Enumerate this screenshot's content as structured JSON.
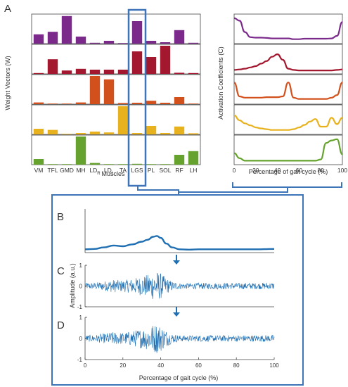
{
  "panel_labels": {
    "A": "A",
    "B": "B",
    "C": "C",
    "D": "D"
  },
  "colors": {
    "synergy": [
      "#7b2a8c",
      "#a3172f",
      "#d2501c",
      "#e8b21f",
      "#66a32e"
    ],
    "highlight": "#3e74b8",
    "signal": "#1f6fb2",
    "axis": "#444444"
  },
  "chart_data": [
    {
      "id": "weight-vectors",
      "type": "bar",
      "ylabel": "Weight Vectors (W)",
      "xlabel": "Muscles",
      "categories": [
        "VM",
        "TFL",
        "GMD",
        "MH",
        "LD_R",
        "LD_L",
        "TA",
        "LGS",
        "PL",
        "SOL",
        "RF",
        "LH"
      ],
      "category_labels": [
        {
          "main": "VM",
          "sub": ""
        },
        {
          "main": "TFL",
          "sub": ""
        },
        {
          "main": "GMD",
          "sub": ""
        },
        {
          "main": "MH",
          "sub": ""
        },
        {
          "main": "LD",
          "sub": "R"
        },
        {
          "main": "LD",
          "sub": "L"
        },
        {
          "main": "TA",
          "sub": ""
        },
        {
          "main": "LGS",
          "sub": ""
        },
        {
          "main": "PL",
          "sub": ""
        },
        {
          "main": "SOL",
          "sub": ""
        },
        {
          "main": "RF",
          "sub": ""
        },
        {
          "main": "LH",
          "sub": ""
        }
      ],
      "ylim": [
        0,
        1
      ],
      "highlighted_category": "LGS",
      "series": [
        {
          "values": [
            0.33,
            0.42,
            0.98,
            0.25,
            0.03,
            0.1,
            0.02,
            0.8,
            0.1,
            0.05,
            0.48,
            0.03
          ]
        },
        {
          "values": [
            0.03,
            0.52,
            0.12,
            0.18,
            0.15,
            0.15,
            0.15,
            0.8,
            0.6,
            1.0,
            0.04,
            0.03
          ]
        },
        {
          "values": [
            0.06,
            0.02,
            0.02,
            0.06,
            1.0,
            0.88,
            0.04,
            0.05,
            0.12,
            0.05,
            0.25,
            0.02
          ]
        },
        {
          "values": [
            0.2,
            0.16,
            0.02,
            0.05,
            0.1,
            0.07,
            1.0,
            0.05,
            0.3,
            0.05,
            0.28,
            0.04
          ]
        },
        {
          "values": [
            0.2,
            0.02,
            0.02,
            1.0,
            0.06,
            0.02,
            0.02,
            0.03,
            0.02,
            0.02,
            0.35,
            0.48
          ]
        }
      ]
    },
    {
      "id": "activation-coefficients",
      "type": "line",
      "ylabel": "Activation Coefficients (C)",
      "xlabel": "Percentage of gait cycle (%)",
      "xlim": [
        0,
        100
      ],
      "xticks": [
        0,
        20,
        40,
        60,
        80,
        100
      ],
      "x": [
        0,
        5,
        10,
        15,
        20,
        25,
        30,
        35,
        40,
        45,
        50,
        55,
        60,
        65,
        70,
        75,
        80,
        85,
        90,
        95,
        100
      ],
      "ylim": [
        0,
        1
      ],
      "series": [
        {
          "values": [
            0.95,
            0.85,
            0.4,
            0.2,
            0.18,
            0.18,
            0.17,
            0.15,
            0.15,
            0.15,
            0.15,
            0.12,
            0.12,
            0.14,
            0.14,
            0.14,
            0.14,
            0.14,
            0.15,
            0.25,
            0.8
          ]
        },
        {
          "values": [
            0.1,
            0.12,
            0.15,
            0.2,
            0.25,
            0.35,
            0.45,
            0.62,
            0.72,
            0.5,
            0.15,
            0.1,
            0.08,
            0.08,
            0.08,
            0.08,
            0.08,
            0.08,
            0.08,
            0.1,
            0.12
          ]
        },
        {
          "values": [
            0.8,
            0.25,
            0.2,
            0.2,
            0.2,
            0.2,
            0.22,
            0.22,
            0.22,
            0.25,
            0.8,
            0.2,
            0.15,
            0.15,
            0.15,
            0.15,
            0.15,
            0.15,
            0.2,
            0.3,
            0.8
          ]
        },
        {
          "values": [
            0.7,
            0.5,
            0.38,
            0.3,
            0.22,
            0.18,
            0.15,
            0.12,
            0.12,
            0.12,
            0.12,
            0.15,
            0.22,
            0.32,
            0.45,
            0.55,
            0.25,
            0.25,
            0.6,
            0.35,
            0.6
          ]
        },
        {
          "values": [
            0.4,
            0.2,
            0.1,
            0.1,
            0.1,
            0.1,
            0.1,
            0.1,
            0.1,
            0.1,
            0.1,
            0.1,
            0.1,
            0.1,
            0.1,
            0.1,
            0.15,
            0.8,
            0.9,
            0.95,
            0.35
          ]
        }
      ]
    },
    {
      "id": "emg-envelope",
      "type": "line",
      "panel": "B",
      "xlim": [
        0,
        100
      ],
      "ylim": [
        0,
        1
      ],
      "x": [
        0,
        5,
        10,
        15,
        20,
        25,
        30,
        33,
        36,
        38,
        40,
        43,
        46,
        50,
        55,
        60,
        70,
        80,
        90,
        100
      ],
      "values": [
        0.05,
        0.06,
        0.1,
        0.15,
        0.13,
        0.18,
        0.25,
        0.3,
        0.38,
        0.4,
        0.35,
        0.2,
        0.1,
        0.05,
        0.04,
        0.05,
        0.05,
        0.05,
        0.05,
        0.06
      ]
    },
    {
      "id": "raw-emg-c",
      "type": "line",
      "panel": "C",
      "ylabel": "Amplitude (a.u.)",
      "xlim": [
        0,
        100
      ],
      "ylim": [
        -1,
        1
      ],
      "yticks": [
        -1,
        0,
        1
      ]
    },
    {
      "id": "raw-emg-d",
      "type": "line",
      "panel": "D",
      "xlabel": "Percentage of gait cycle (%)",
      "xlim": [
        0,
        100
      ],
      "xticks": [
        0,
        20,
        40,
        60,
        80,
        100
      ],
      "ylim": [
        -1,
        1
      ],
      "yticks": [
        -1,
        0,
        1
      ]
    }
  ]
}
